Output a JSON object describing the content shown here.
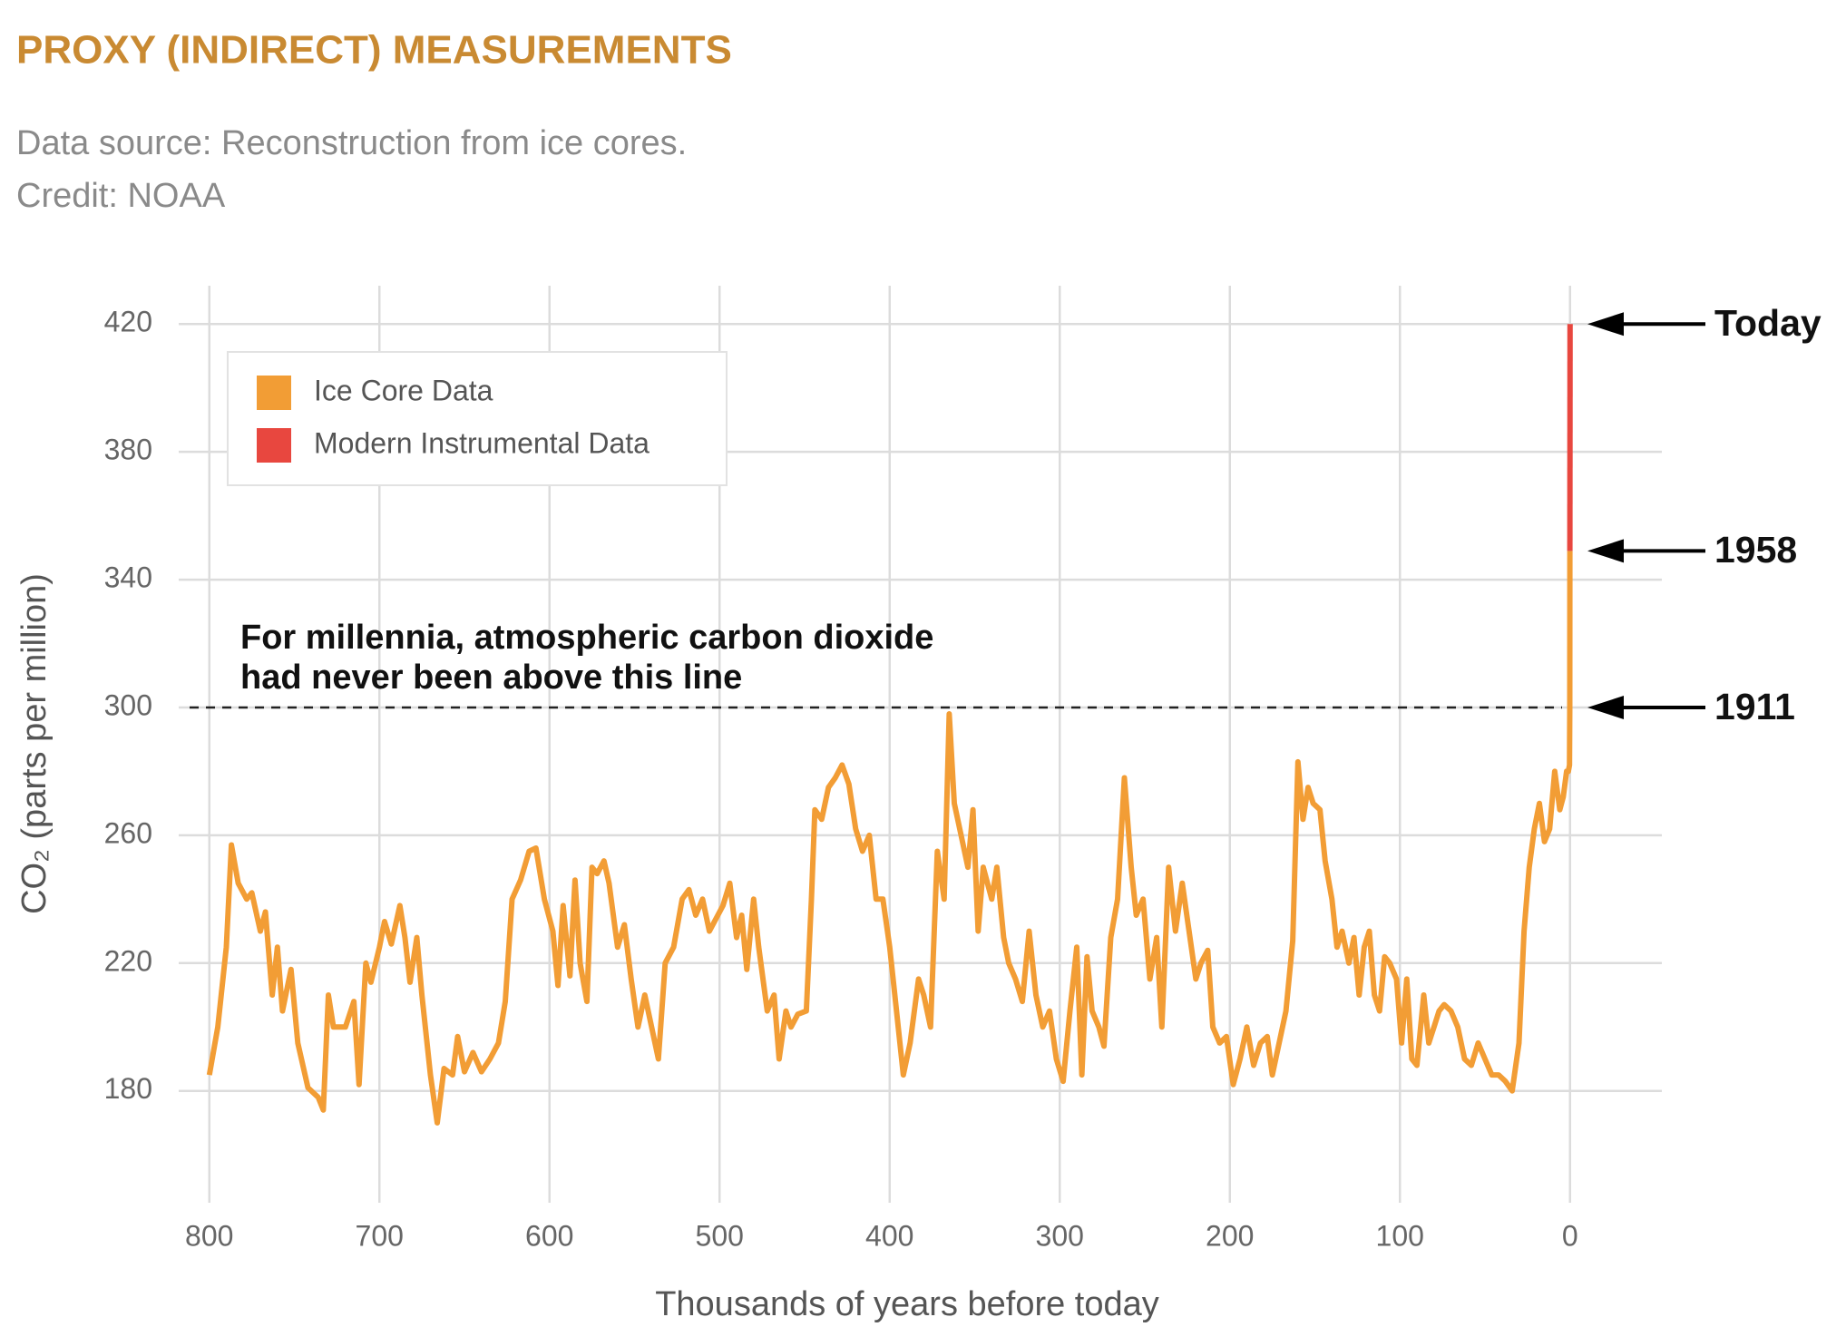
{
  "chart_data": {
    "type": "line",
    "title": "PROXY (INDIRECT) MEASUREMENTS",
    "subtitle_lines": [
      "Data source: Reconstruction from ice cores.",
      "Credit: NOAA"
    ],
    "xlabel": "Thousands of years before today",
    "ylabel": "CO₂ (parts per million)",
    "xlim": [
      818,
      -54
    ],
    "ylim": [
      145,
      432
    ],
    "xticks": [
      800,
      700,
      600,
      500,
      400,
      300,
      200,
      100,
      0
    ],
    "yticks": [
      180,
      220,
      260,
      300,
      340,
      380,
      420
    ],
    "grid": true,
    "legend": "upper left",
    "series": [
      {
        "name": "Ice Core Data",
        "color": "#f29d35",
        "x": [
          800,
          795,
          790,
          787,
          783,
          778,
          775,
          770,
          767,
          763,
          760,
          757,
          752,
          748,
          742,
          736,
          733,
          730,
          727,
          720,
          715,
          712,
          708,
          705,
          700,
          697,
          693,
          688,
          685,
          682,
          678,
          675,
          670,
          666,
          662,
          657,
          654,
          650,
          645,
          640,
          635,
          630,
          626,
          622,
          617,
          612,
          608,
          603,
          598,
          595,
          592,
          588,
          585,
          582,
          578,
          575,
          572,
          568,
          565,
          560,
          556,
          552,
          548,
          544,
          540,
          536,
          532,
          527,
          522,
          518,
          514,
          510,
          506,
          502,
          498,
          494,
          490,
          487,
          484,
          480,
          477,
          472,
          468,
          465,
          461,
          458,
          454,
          449,
          446,
          444,
          440,
          436,
          432,
          428,
          424,
          420,
          416,
          412,
          408,
          404,
          400,
          396,
          392,
          388,
          383,
          380,
          376,
          372,
          368,
          365,
          362,
          358,
          354,
          351,
          348,
          345,
          340,
          337,
          333,
          330,
          326,
          322,
          318,
          314,
          310,
          306,
          302,
          298,
          294,
          290,
          287,
          284,
          281,
          277,
          274,
          270,
          266,
          262,
          258,
          255,
          251,
          247,
          243,
          240,
          236,
          232,
          228,
          224,
          220,
          217,
          213,
          210,
          206,
          202,
          198,
          194,
          190,
          186,
          182,
          178,
          175,
          171,
          167,
          163,
          160,
          157,
          154,
          151,
          147,
          144,
          140,
          137,
          134,
          130,
          127,
          124,
          121,
          118,
          115,
          112,
          109,
          106,
          102,
          99,
          96,
          93,
          90,
          86,
          83,
          80,
          77,
          74,
          70,
          66,
          62,
          58,
          54,
          50,
          46,
          42,
          38,
          34,
          30,
          27,
          24,
          21,
          18,
          15,
          12,
          9,
          6,
          4,
          2,
          1,
          0.3,
          0.112,
          0.066
        ],
        "values": [
          185,
          200,
          225,
          257,
          245,
          240,
          242,
          230,
          236,
          210,
          225,
          205,
          218,
          195,
          181,
          178,
          174,
          210,
          200,
          200,
          208,
          182,
          220,
          214,
          225,
          233,
          226,
          238,
          228,
          214,
          228,
          210,
          185,
          170,
          187,
          185,
          197,
          186,
          192,
          186,
          190,
          195,
          208,
          240,
          246,
          255,
          256,
          240,
          230,
          213,
          238,
          216,
          246,
          220,
          208,
          250,
          248,
          252,
          245,
          225,
          232,
          215,
          200,
          210,
          200,
          190,
          220,
          225,
          240,
          243,
          235,
          240,
          230,
          234,
          238,
          245,
          228,
          235,
          218,
          240,
          225,
          205,
          210,
          190,
          205,
          200,
          204,
          205,
          240,
          268,
          265,
          275,
          278,
          282,
          276,
          262,
          255,
          260,
          240,
          240,
          225,
          205,
          185,
          195,
          215,
          210,
          200,
          255,
          240,
          298,
          270,
          260,
          250,
          268,
          230,
          250,
          240,
          250,
          228,
          220,
          215,
          208,
          230,
          210,
          200,
          205,
          190,
          183,
          205,
          225,
          185,
          222,
          205,
          200,
          194,
          228,
          240,
          278,
          250,
          235,
          240,
          215,
          228,
          200,
          250,
          230,
          245,
          230,
          215,
          220,
          224,
          200,
          195,
          197,
          182,
          190,
          200,
          188,
          195,
          197,
          185,
          195,
          205,
          227,
          283,
          265,
          275,
          270,
          268,
          252,
          240,
          225,
          230,
          220,
          228,
          210,
          225,
          230,
          210,
          205,
          222,
          220,
          215,
          195,
          215,
          190,
          188,
          210,
          195,
          200,
          205,
          207,
          205,
          200,
          190,
          188,
          195,
          190,
          185,
          185,
          183,
          180,
          195,
          230,
          250,
          262,
          270,
          258,
          262,
          280,
          268,
          272,
          280,
          280,
          282,
          300,
          349
        ]
      },
      {
        "name": "Modern Instrumental Data",
        "color": "#e8473f",
        "x": [
          0.066,
          0
        ],
        "values": [
          349,
          420
        ]
      }
    ],
    "reference_line": {
      "value": 300,
      "label_lines": [
        "For millennia, atmospheric carbon dioxide",
        "had never been above this line"
      ]
    },
    "arrows": [
      {
        "label": "Today",
        "value": 420
      },
      {
        "label": "1958",
        "value": 349
      },
      {
        "label": "1911",
        "value": 300
      }
    ]
  }
}
